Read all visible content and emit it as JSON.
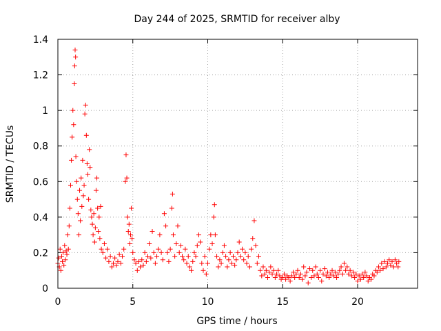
{
  "chart_data": {
    "type": "scatter",
    "title": "Day 244 of 2025, SRMTID for receiver alby",
    "xlabel": "GPS time / hours",
    "ylabel": "SRMTID / TECUs",
    "xlim": [
      0,
      24
    ],
    "ylim": [
      0,
      1.4
    ],
    "x_ticks": [
      0,
      5,
      10,
      15,
      20
    ],
    "x_tick_labels": [
      "0",
      "5",
      "10",
      "15",
      "20"
    ],
    "y_ticks": [
      0,
      0.2,
      0.4,
      0.6,
      0.8,
      1.0,
      1.2,
      1.4
    ],
    "y_tick_labels": [
      "0",
      "0.2",
      "0.4",
      "0.6",
      "0.8",
      "1",
      "1.2",
      "1.4"
    ],
    "grid": true,
    "marker": "+",
    "color": "#ff0000",
    "series": [
      {
        "name": "SRMTID",
        "points": [
          [
            0.0,
            0.14
          ],
          [
            0.05,
            0.17
          ],
          [
            0.1,
            0.12
          ],
          [
            0.15,
            0.22
          ],
          [
            0.2,
            0.1
          ],
          [
            0.25,
            0.18
          ],
          [
            0.3,
            0.15
          ],
          [
            0.35,
            0.2
          ],
          [
            0.4,
            0.13
          ],
          [
            0.45,
            0.24
          ],
          [
            0.5,
            0.16
          ],
          [
            0.55,
            0.21
          ],
          [
            0.6,
            0.19
          ],
          [
            0.65,
            0.3
          ],
          [
            0.7,
            0.22
          ],
          [
            0.75,
            0.35
          ],
          [
            0.8,
            0.45
          ],
          [
            0.85,
            0.58
          ],
          [
            0.9,
            0.72
          ],
          [
            0.95,
            0.85
          ],
          [
            1.0,
            1.0
          ],
          [
            1.05,
            0.92
          ],
          [
            1.1,
            1.15
          ],
          [
            1.12,
            1.25
          ],
          [
            1.15,
            1.34
          ],
          [
            1.18,
            1.3
          ],
          [
            1.2,
            0.74
          ],
          [
            1.25,
            0.6
          ],
          [
            1.3,
            0.5
          ],
          [
            1.35,
            0.42
          ],
          [
            1.4,
            0.3
          ],
          [
            1.45,
            0.55
          ],
          [
            1.5,
            0.38
          ],
          [
            1.55,
            0.62
          ],
          [
            1.6,
            0.46
          ],
          [
            1.65,
            0.72
          ],
          [
            1.7,
            0.52
          ],
          [
            1.75,
            0.58
          ],
          [
            1.8,
            0.98
          ],
          [
            1.85,
            1.03
          ],
          [
            1.9,
            0.86
          ],
          [
            1.95,
            0.7
          ],
          [
            2.0,
            0.64
          ],
          [
            2.05,
            0.5
          ],
          [
            2.1,
            0.78
          ],
          [
            2.15,
            0.68
          ],
          [
            2.2,
            0.44
          ],
          [
            2.25,
            0.4
          ],
          [
            2.3,
            0.36
          ],
          [
            2.35,
            0.3
          ],
          [
            2.4,
            0.42
          ],
          [
            2.45,
            0.26
          ],
          [
            2.5,
            0.34
          ],
          [
            2.55,
            0.55
          ],
          [
            2.6,
            0.62
          ],
          [
            2.65,
            0.45
          ],
          [
            2.7,
            0.32
          ],
          [
            2.75,
            0.4
          ],
          [
            2.8,
            0.28
          ],
          [
            2.85,
            0.46
          ],
          [
            2.9,
            0.22
          ],
          [
            3.0,
            0.2
          ],
          [
            3.1,
            0.25
          ],
          [
            3.2,
            0.17
          ],
          [
            3.3,
            0.22
          ],
          [
            3.4,
            0.15
          ],
          [
            3.5,
            0.18
          ],
          [
            3.6,
            0.12
          ],
          [
            3.7,
            0.14
          ],
          [
            3.8,
            0.17
          ],
          [
            3.9,
            0.13
          ],
          [
            4.0,
            0.15
          ],
          [
            4.1,
            0.19
          ],
          [
            4.2,
            0.14
          ],
          [
            4.3,
            0.18
          ],
          [
            4.4,
            0.22
          ],
          [
            4.5,
            0.6
          ],
          [
            4.55,
            0.75
          ],
          [
            4.6,
            0.62
          ],
          [
            4.65,
            0.4
          ],
          [
            4.7,
            0.32
          ],
          [
            4.75,
            0.36
          ],
          [
            4.8,
            0.25
          ],
          [
            4.85,
            0.3
          ],
          [
            4.9,
            0.45
          ],
          [
            4.95,
            0.28
          ],
          [
            5.0,
            0.2
          ],
          [
            5.1,
            0.16
          ],
          [
            5.2,
            0.14
          ],
          [
            5.3,
            0.1
          ],
          [
            5.4,
            0.15
          ],
          [
            5.5,
            0.12
          ],
          [
            5.6,
            0.16
          ],
          [
            5.7,
            0.13
          ],
          [
            5.8,
            0.2
          ],
          [
            5.9,
            0.15
          ],
          [
            6.0,
            0.18
          ],
          [
            6.1,
            0.25
          ],
          [
            6.2,
            0.17
          ],
          [
            6.3,
            0.32
          ],
          [
            6.4,
            0.2
          ],
          [
            6.5,
            0.14
          ],
          [
            6.6,
            0.18
          ],
          [
            6.7,
            0.22
          ],
          [
            6.8,
            0.3
          ],
          [
            6.9,
            0.2
          ],
          [
            7.0,
            0.16
          ],
          [
            7.1,
            0.42
          ],
          [
            7.2,
            0.35
          ],
          [
            7.3,
            0.2
          ],
          [
            7.4,
            0.15
          ],
          [
            7.5,
            0.22
          ],
          [
            7.6,
            0.45
          ],
          [
            7.65,
            0.53
          ],
          [
            7.7,
            0.3
          ],
          [
            7.8,
            0.18
          ],
          [
            7.9,
            0.25
          ],
          [
            8.0,
            0.35
          ],
          [
            8.1,
            0.2
          ],
          [
            8.2,
            0.24
          ],
          [
            8.3,
            0.18
          ],
          [
            8.4,
            0.16
          ],
          [
            8.5,
            0.22
          ],
          [
            8.6,
            0.14
          ],
          [
            8.7,
            0.18
          ],
          [
            8.8,
            0.12
          ],
          [
            8.9,
            0.1
          ],
          [
            9.0,
            0.15
          ],
          [
            9.1,
            0.2
          ],
          [
            9.2,
            0.18
          ],
          [
            9.3,
            0.24
          ],
          [
            9.4,
            0.3
          ],
          [
            9.5,
            0.26
          ],
          [
            9.6,
            0.14
          ],
          [
            9.7,
            0.1
          ],
          [
            9.8,
            0.18
          ],
          [
            9.9,
            0.08
          ],
          [
            10.0,
            0.14
          ],
          [
            10.1,
            0.22
          ],
          [
            10.2,
            0.3
          ],
          [
            10.3,
            0.25
          ],
          [
            10.4,
            0.4
          ],
          [
            10.45,
            0.47
          ],
          [
            10.5,
            0.3
          ],
          [
            10.6,
            0.18
          ],
          [
            10.7,
            0.12
          ],
          [
            10.8,
            0.16
          ],
          [
            10.9,
            0.14
          ],
          [
            11.0,
            0.2
          ],
          [
            11.1,
            0.24
          ],
          [
            11.2,
            0.18
          ],
          [
            11.3,
            0.12
          ],
          [
            11.4,
            0.16
          ],
          [
            11.5,
            0.2
          ],
          [
            11.6,
            0.14
          ],
          [
            11.7,
            0.18
          ],
          [
            11.8,
            0.13
          ],
          [
            11.9,
            0.16
          ],
          [
            12.0,
            0.2
          ],
          [
            12.1,
            0.26
          ],
          [
            12.2,
            0.18
          ],
          [
            12.3,
            0.22
          ],
          [
            12.4,
            0.16
          ],
          [
            12.5,
            0.2
          ],
          [
            12.6,
            0.14
          ],
          [
            12.7,
            0.18
          ],
          [
            12.8,
            0.12
          ],
          [
            12.9,
            0.22
          ],
          [
            13.0,
            0.28
          ],
          [
            13.1,
            0.38
          ],
          [
            13.2,
            0.24
          ],
          [
            13.3,
            0.14
          ],
          [
            13.4,
            0.18
          ],
          [
            13.5,
            0.1
          ],
          [
            13.6,
            0.07
          ],
          [
            13.7,
            0.12
          ],
          [
            13.8,
            0.08
          ],
          [
            13.9,
            0.1
          ],
          [
            14.0,
            0.06
          ],
          [
            14.1,
            0.09
          ],
          [
            14.2,
            0.12
          ],
          [
            14.3,
            0.08
          ],
          [
            14.4,
            0.1
          ],
          [
            14.5,
            0.06
          ],
          [
            14.6,
            0.08
          ],
          [
            14.7,
            0.1
          ],
          [
            14.8,
            0.07
          ],
          [
            14.9,
            0.05
          ],
          [
            15.0,
            0.06
          ],
          [
            15.1,
            0.08
          ],
          [
            15.2,
            0.05
          ],
          [
            15.3,
            0.07
          ],
          [
            15.4,
            0.06
          ],
          [
            15.5,
            0.04
          ],
          [
            15.6,
            0.07
          ],
          [
            15.7,
            0.09
          ],
          [
            15.8,
            0.06
          ],
          [
            15.9,
            0.08
          ],
          [
            16.0,
            0.1
          ],
          [
            16.1,
            0.06
          ],
          [
            16.2,
            0.08
          ],
          [
            16.3,
            0.05
          ],
          [
            16.4,
            0.12
          ],
          [
            16.5,
            0.07
          ],
          [
            16.6,
            0.09
          ],
          [
            16.7,
            0.03
          ],
          [
            16.8,
            0.11
          ],
          [
            16.9,
            0.06
          ],
          [
            17.0,
            0.1
          ],
          [
            17.1,
            0.07
          ],
          [
            17.2,
            0.12
          ],
          [
            17.3,
            0.08
          ],
          [
            17.4,
            0.06
          ],
          [
            17.5,
            0.1
          ],
          [
            17.6,
            0.04
          ],
          [
            17.7,
            0.08
          ],
          [
            17.8,
            0.11
          ],
          [
            17.9,
            0.07
          ],
          [
            18.0,
            0.09
          ],
          [
            18.1,
            0.06
          ],
          [
            18.2,
            0.08
          ],
          [
            18.3,
            0.1
          ],
          [
            18.4,
            0.07
          ],
          [
            18.5,
            0.09
          ],
          [
            18.6,
            0.06
          ],
          [
            18.7,
            0.08
          ],
          [
            18.8,
            0.1
          ],
          [
            18.9,
            0.12
          ],
          [
            19.0,
            0.08
          ],
          [
            19.1,
            0.14
          ],
          [
            19.2,
            0.1
          ],
          [
            19.3,
            0.12
          ],
          [
            19.4,
            0.08
          ],
          [
            19.5,
            0.1
          ],
          [
            19.6,
            0.07
          ],
          [
            19.7,
            0.09
          ],
          [
            19.8,
            0.06
          ],
          [
            19.9,
            0.08
          ],
          [
            20.0,
            0.04
          ],
          [
            20.1,
            0.07
          ],
          [
            20.2,
            0.05
          ],
          [
            20.3,
            0.08
          ],
          [
            20.4,
            0.06
          ],
          [
            20.5,
            0.09
          ],
          [
            20.6,
            0.07
          ],
          [
            20.7,
            0.04
          ],
          [
            20.8,
            0.06
          ],
          [
            20.9,
            0.05
          ],
          [
            21.0,
            0.08
          ],
          [
            21.1,
            0.07
          ],
          [
            21.2,
            0.1
          ],
          [
            21.3,
            0.09
          ],
          [
            21.4,
            0.12
          ],
          [
            21.5,
            0.1
          ],
          [
            21.6,
            0.14
          ],
          [
            21.7,
            0.11
          ],
          [
            21.8,
            0.15
          ],
          [
            21.9,
            0.12
          ],
          [
            22.0,
            0.14
          ],
          [
            22.1,
            0.16
          ],
          [
            22.2,
            0.13
          ],
          [
            22.3,
            0.15
          ],
          [
            22.4,
            0.12
          ],
          [
            22.5,
            0.16
          ],
          [
            22.6,
            0.14
          ],
          [
            22.7,
            0.12
          ],
          [
            22.75,
            0.15
          ]
        ]
      }
    ]
  }
}
